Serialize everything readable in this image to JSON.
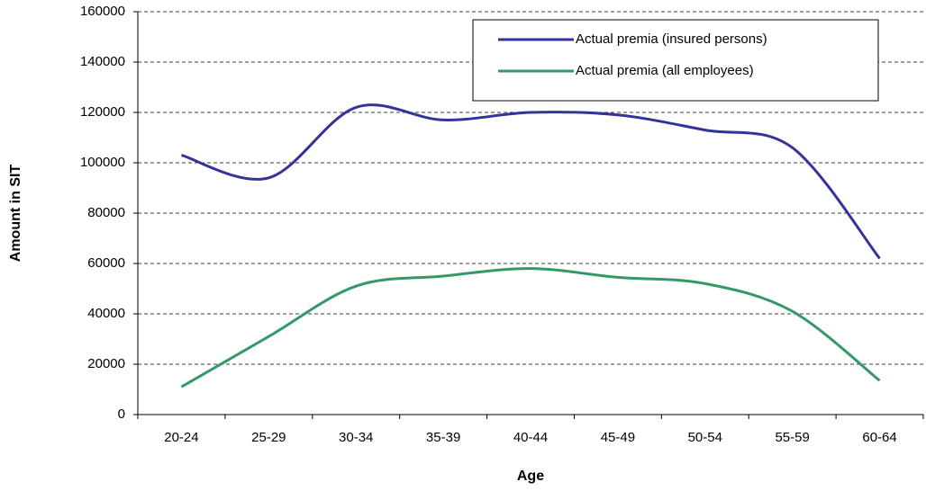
{
  "chart_data": {
    "type": "line",
    "x_label": "Age",
    "y_label": "Amount in SIT",
    "categories": [
      "20-24",
      "25-29",
      "30-34",
      "35-39",
      "40-44",
      "45-49",
      "50-54",
      "55-59",
      "60-64"
    ],
    "series": [
      {
        "name": "Actual premia (insured persons)",
        "color": "#333399",
        "values": [
          103000,
          94000,
          122000,
          117000,
          120000,
          119000,
          113000,
          106000,
          62000
        ]
      },
      {
        "name": "Actual premia (all employees)",
        "color": "#339966",
        "values": [
          11000,
          31000,
          51000,
          55000,
          58000,
          54500,
          52000,
          41000,
          13500
        ]
      }
    ],
    "ylim": [
      0,
      160000
    ],
    "yticks": [
      0,
      20000,
      40000,
      60000,
      80000,
      100000,
      120000,
      140000,
      160000
    ],
    "grid": true,
    "smooth": true,
    "legend": "top-right"
  }
}
